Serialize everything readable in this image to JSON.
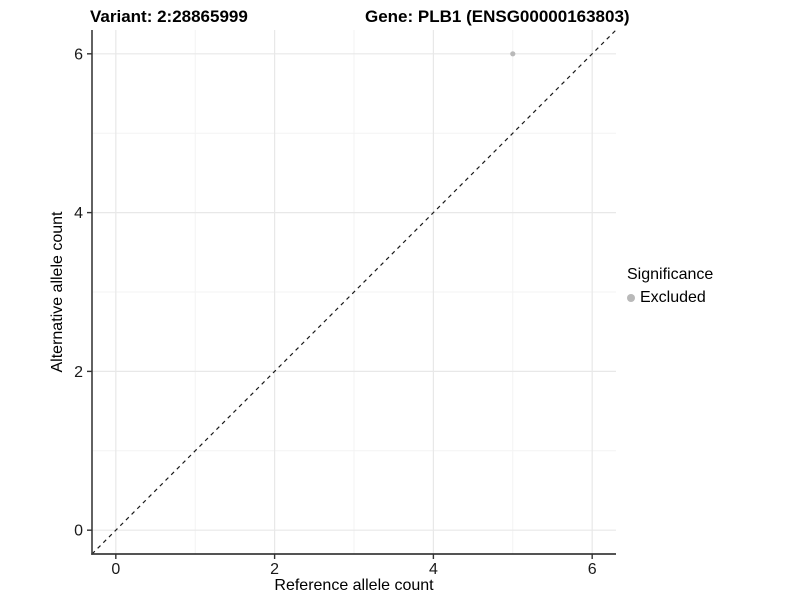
{
  "title": {
    "variant": "Variant: 2:28865999",
    "gene": "Gene: PLB1 (ENSG00000163803)"
  },
  "x_axis": {
    "label": "Reference allele count",
    "tick_labels": [
      "0",
      "2",
      "4",
      "6"
    ]
  },
  "y_axis": {
    "label": "Alternative allele count",
    "tick_labels": [
      "0",
      "2",
      "4",
      "6"
    ]
  },
  "legend": {
    "title": "Significance",
    "items": [
      {
        "label": "Excluded",
        "color": "#b9b9b9"
      }
    ]
  },
  "chart_data": {
    "type": "scatter",
    "title": "Variant: 2:28865999    Gene: PLB1 (ENSG00000163803)",
    "xlabel": "Reference allele count",
    "ylabel": "Alternative allele count",
    "xlim": [
      -0.3,
      6.3
    ],
    "ylim": [
      -0.3,
      6.3
    ],
    "x_ticks": [
      0,
      2,
      4,
      6
    ],
    "y_ticks": [
      0,
      2,
      4,
      6
    ],
    "x_minor_ticks": [
      1,
      3,
      5
    ],
    "y_minor_ticks": [
      1,
      3,
      5
    ],
    "grid": "on",
    "legend_position": "right",
    "series": [
      {
        "name": "Excluded",
        "color": "#b9b9b9",
        "points": [
          {
            "x": 5,
            "y": 6
          }
        ]
      }
    ],
    "identity_line": {
      "equation": "y = x",
      "style": "dashed",
      "color": "#1a1a1a",
      "from": [
        -0.3,
        -0.3
      ],
      "to": [
        6.3,
        6.3
      ]
    }
  },
  "colors": {
    "background": "#ffffff",
    "grid_major": "#e8e8e8",
    "grid_minor": "#f3f3f3",
    "axis_line": "#3b3b3b",
    "tick_mark": "#333333",
    "tick_label": "#1a1a1a",
    "point": "#b9b9b9"
  }
}
